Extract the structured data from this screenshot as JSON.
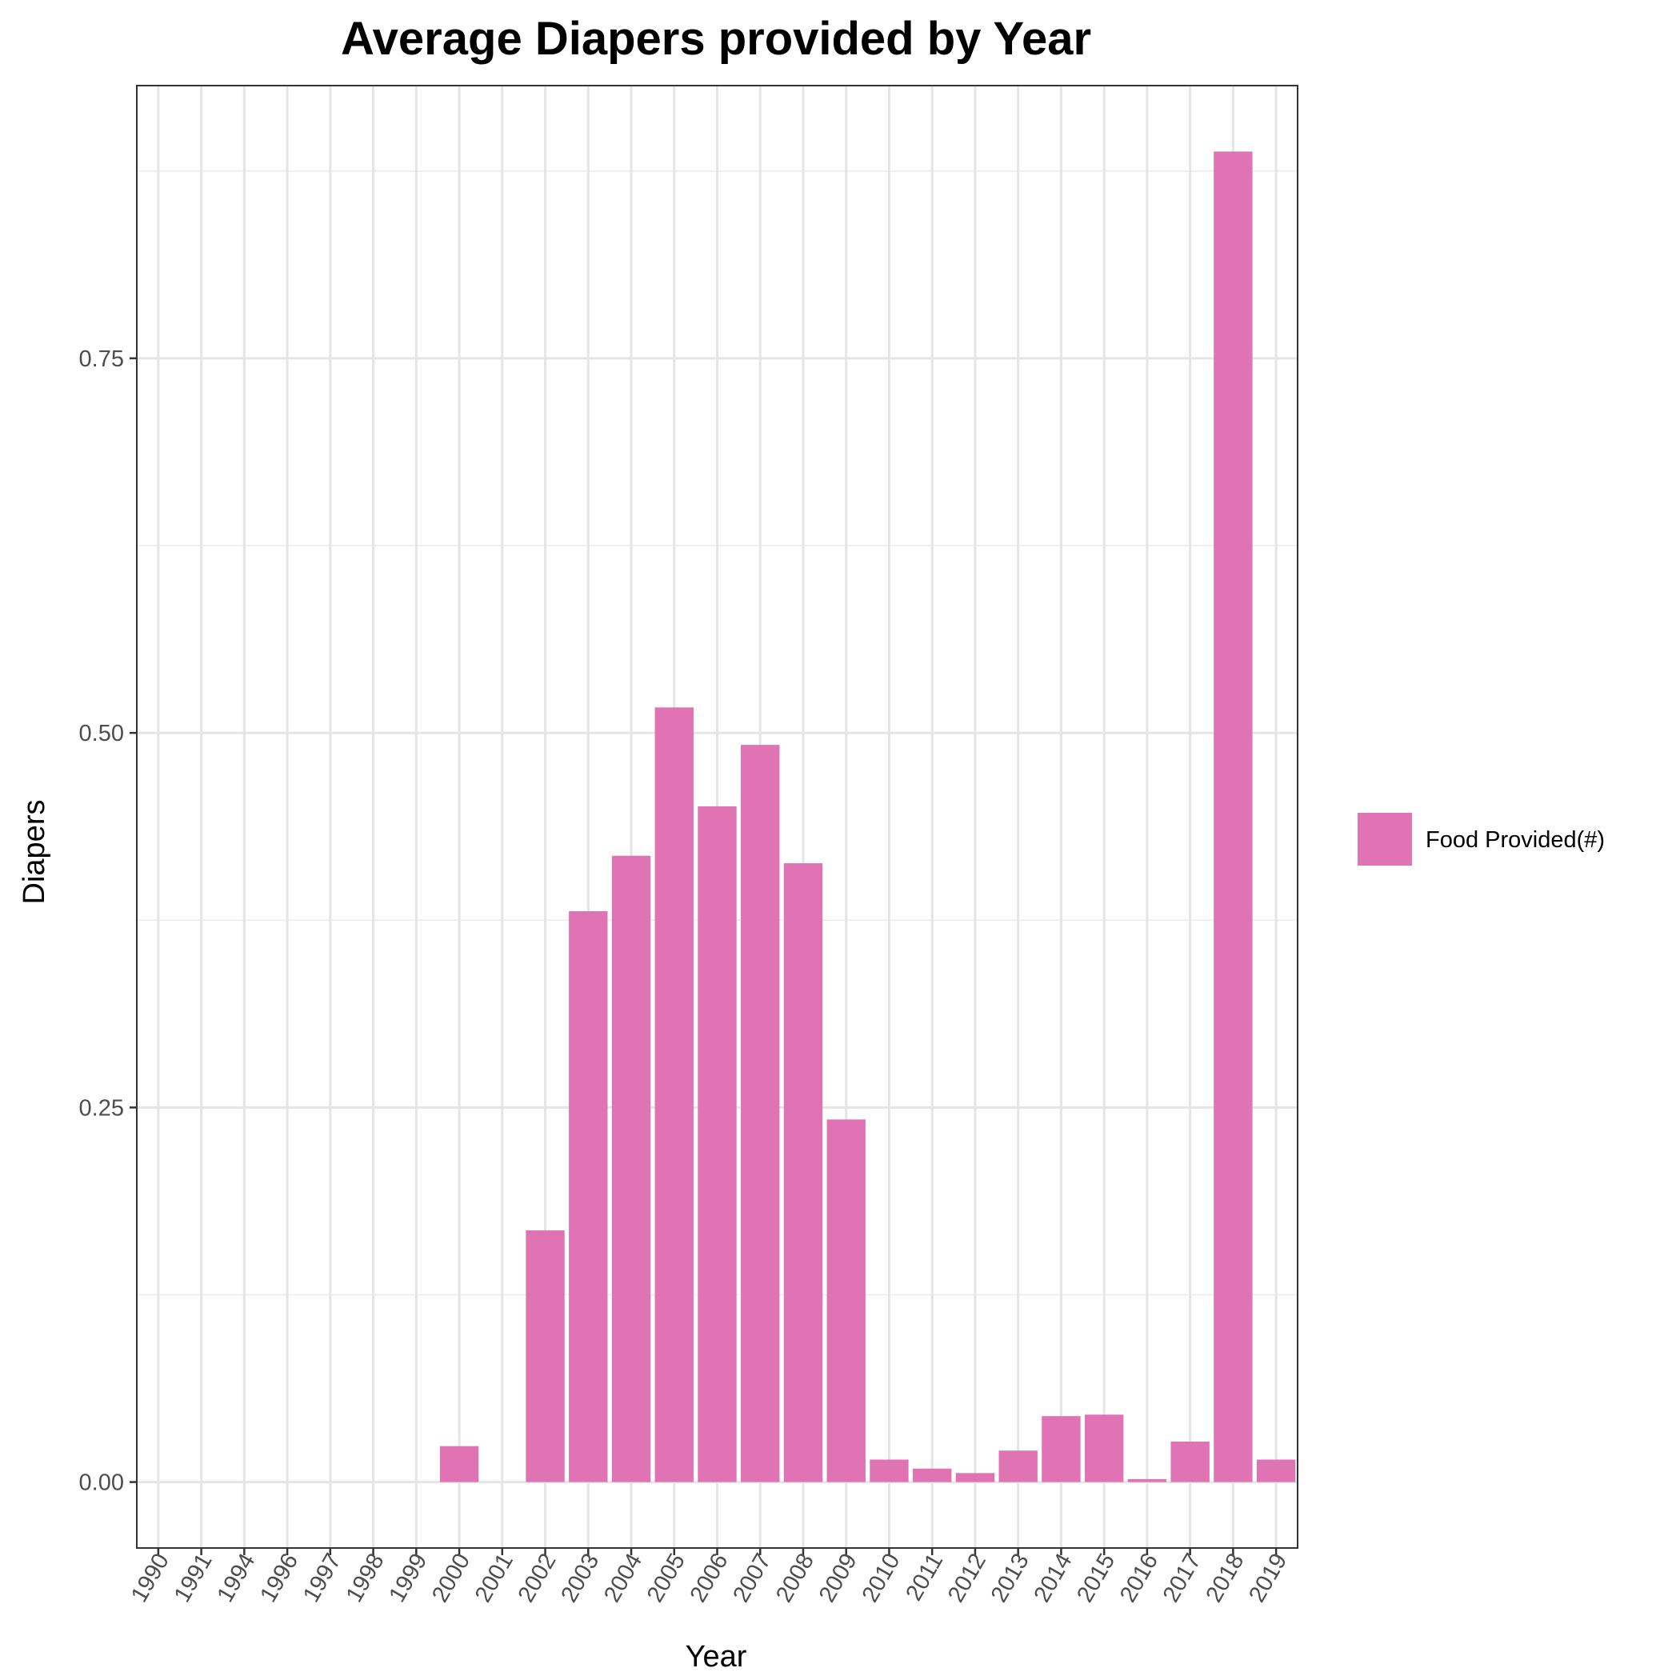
{
  "chart_data": {
    "type": "bar",
    "title": "Average Diapers provided by Year",
    "xlabel": "Year",
    "ylabel": "Diapers",
    "categories": [
      "1990",
      "1991",
      "1994",
      "1996",
      "1997",
      "1998",
      "1999",
      "2000",
      "2001",
      "2002",
      "2003",
      "2004",
      "2005",
      "2006",
      "2007",
      "2008",
      "2009",
      "2010",
      "2011",
      "2012",
      "2013",
      "2014",
      "2015",
      "2016",
      "2017",
      "2018",
      "2019"
    ],
    "series": [
      {
        "name": "Food Provided(#)",
        "color": "#df73b4",
        "values": [
          0,
          0,
          0,
          0,
          0,
          0,
          0,
          0.024,
          0,
          0.168,
          0.381,
          0.418,
          0.517,
          0.451,
          0.492,
          0.413,
          0.242,
          0.015,
          0.009,
          0.006,
          0.021,
          0.044,
          0.045,
          0.002,
          0.027,
          0.888,
          0.015
        ]
      }
    ],
    "ylim": [
      -0.044,
      0.932
    ],
    "yticks": [
      0.0,
      0.25,
      0.5,
      0.75
    ],
    "ytick_labels": [
      "0.00",
      "0.25",
      "0.50",
      "0.75"
    ],
    "grid": true,
    "legend": "right"
  }
}
